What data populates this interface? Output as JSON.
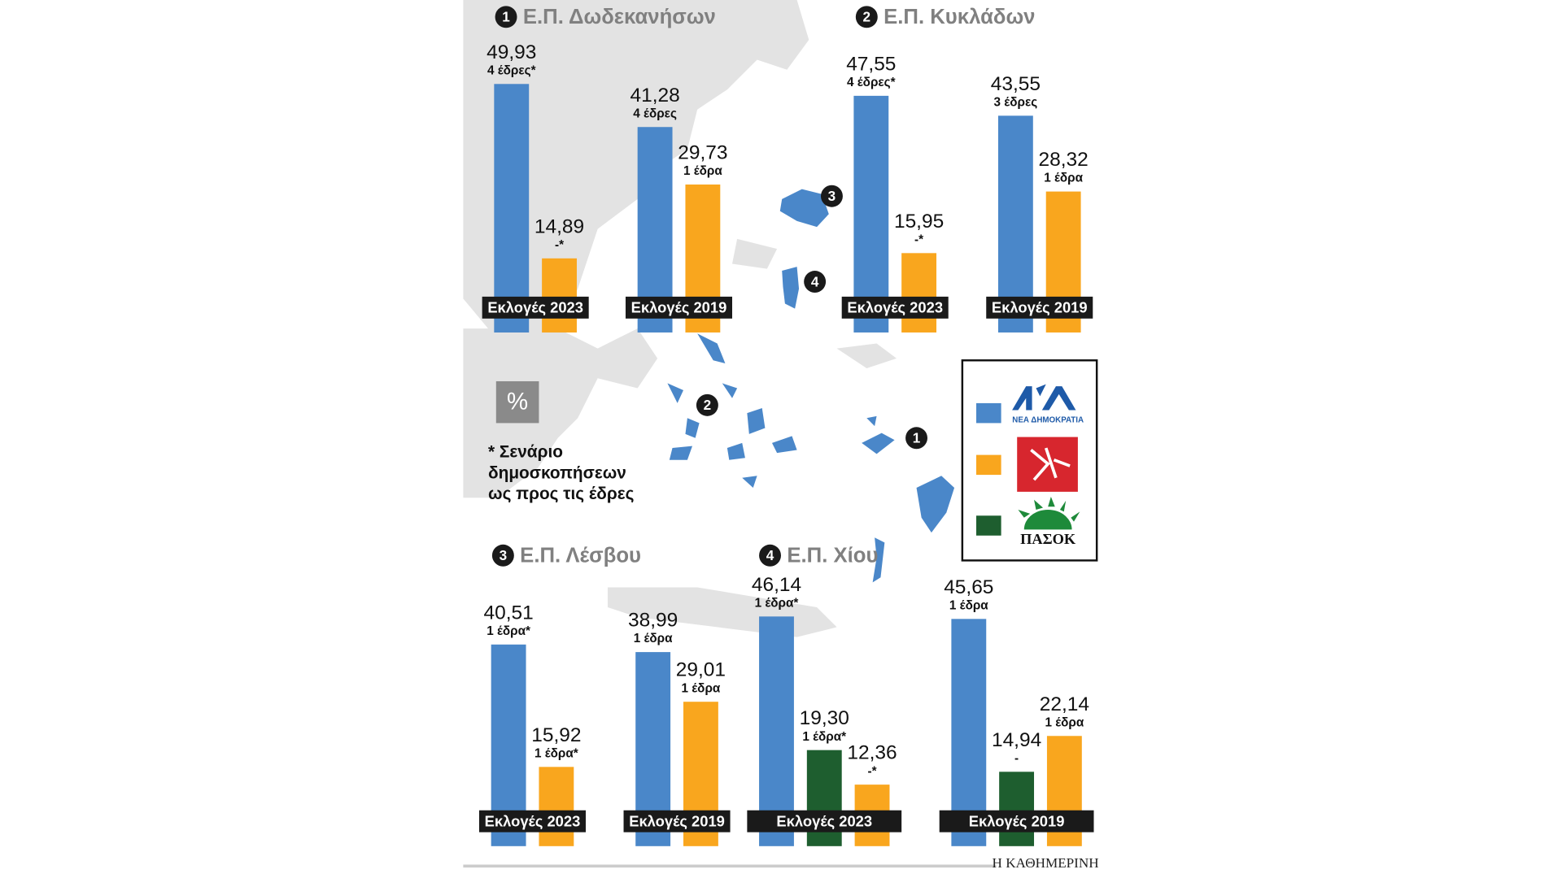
{
  "chart_data": [
    {
      "type": "bar",
      "number": "1",
      "title": "Ε.Π. Δωδεκανήσων",
      "categories": [
        "Εκλογές 2023",
        "Εκλογές 2019"
      ],
      "series": [
        {
          "color": "#4a87c9",
          "values": [
            49.93,
            41.28
          ],
          "value_labels": [
            "49,93",
            "41,28"
          ],
          "seat_labels": [
            "4 έδρες*",
            "4 έδρες"
          ]
        },
        {
          "color": "#f9a61e",
          "values": [
            14.89,
            29.73
          ],
          "value_labels": [
            "14,89",
            "29,73"
          ],
          "seat_labels": [
            "-*",
            "1 έδρα"
          ]
        }
      ]
    },
    {
      "type": "bar",
      "number": "2",
      "title": "Ε.Π. Κυκλάδων",
      "categories": [
        "Εκλογές 2023",
        "Εκλογές 2019"
      ],
      "series": [
        {
          "color": "#4a87c9",
          "values": [
            47.55,
            43.55
          ],
          "value_labels": [
            "47,55",
            "43,55"
          ],
          "seat_labels": [
            "4 έδρες*",
            "3 έδρες"
          ]
        },
        {
          "color": "#f9a61e",
          "values": [
            15.95,
            28.32
          ],
          "value_labels": [
            "15,95",
            "28,32"
          ],
          "seat_labels": [
            "-*",
            "1 έδρα"
          ]
        }
      ]
    },
    {
      "type": "bar",
      "number": "3",
      "title": "Ε.Π. Λέσβου",
      "categories": [
        "Εκλογές 2023",
        "Εκλογές 2019"
      ],
      "series": [
        {
          "color": "#4a87c9",
          "values": [
            40.51,
            38.99
          ],
          "value_labels": [
            "40,51",
            "38,99"
          ],
          "seat_labels": [
            "1 έδρα*",
            "1 έδρα"
          ]
        },
        {
          "color": "#f9a61e",
          "values": [
            15.92,
            29.01
          ],
          "value_labels": [
            "15,92",
            "29,01"
          ],
          "seat_labels": [
            "1 έδρα*",
            "1 έδρα"
          ]
        }
      ]
    },
    {
      "type": "bar",
      "number": "4",
      "title": "Ε.Π. Χίου",
      "categories": [
        "Εκλογές 2023",
        "Εκλογές 2019"
      ],
      "series": [
        {
          "color": "#4a87c9",
          "values": [
            46.14,
            45.65
          ],
          "value_labels": [
            "46,14",
            "45,65"
          ],
          "seat_labels": [
            "1 έδρα*",
            "1 έδρα"
          ]
        },
        {
          "color": "#1e5e2f",
          "values": [
            19.3,
            14.94
          ],
          "value_labels": [
            "19,30",
            "14,94"
          ],
          "seat_labels": [
            "1 έδρα*",
            "-"
          ]
        },
        {
          "color": "#f9a61e",
          "values": [
            12.36,
            22.14
          ],
          "value_labels": [
            "12,36",
            "22,14"
          ],
          "seat_labels": [
            "-*",
            "1 έδρα"
          ]
        }
      ]
    }
  ],
  "legend": [
    {
      "color": "#4a87c9",
      "text": "ΝΕΑ ΔΗΜΟΚΡΑΤΙΑ"
    },
    {
      "color": "#f9a61e"
    },
    {
      "color": "#1e5e2f",
      "text": "ΠΑΣΟΚ"
    }
  ],
  "unit": "%",
  "footnote": [
    "* Σενάριο",
    "δημοσκοπήσεων",
    "ως προς τις έδρες"
  ],
  "map_labels": [
    "3",
    "4",
    "2",
    "1"
  ],
  "source": "Η ΚΑΘΗΜΕΡΙΝΗ"
}
